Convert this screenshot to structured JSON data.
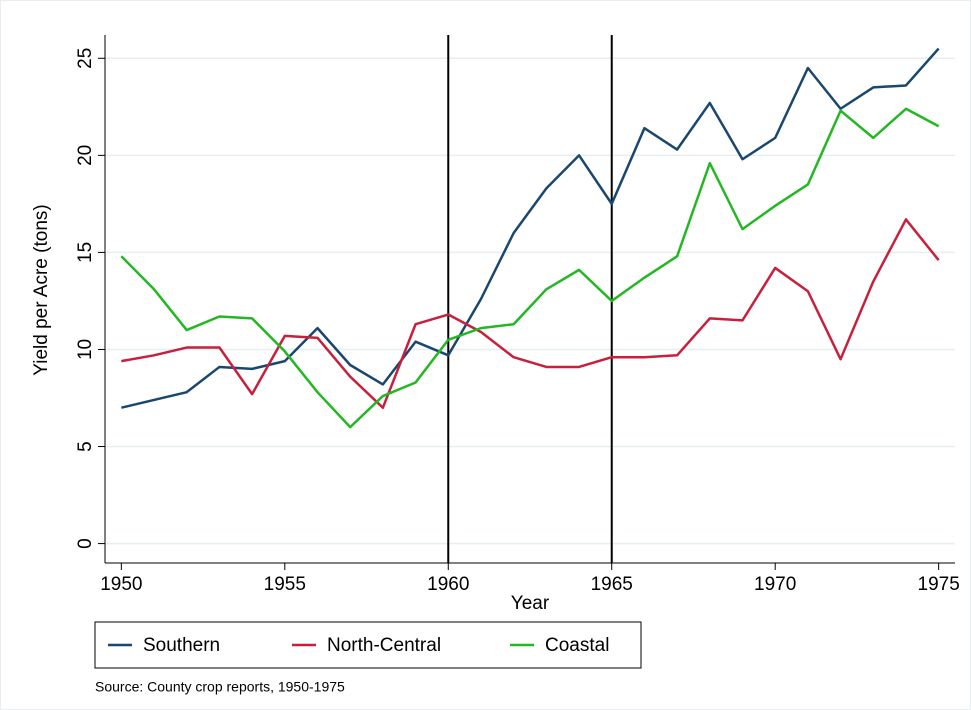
{
  "chart_data": {
    "type": "line",
    "x_label": "Year",
    "y_label": "Yield per Acre (tons)",
    "note": "Source: County crop reports, 1950-1975",
    "x": [
      1950,
      1951,
      1952,
      1953,
      1954,
      1955,
      1956,
      1957,
      1958,
      1959,
      1960,
      1961,
      1962,
      1963,
      1964,
      1965,
      1966,
      1967,
      1968,
      1969,
      1970,
      1971,
      1972,
      1973,
      1974,
      1975
    ],
    "series": [
      {
        "name": "Southern",
        "color": "#1a476f",
        "values": [
          7.0,
          7.4,
          7.8,
          9.1,
          9.0,
          9.4,
          11.1,
          9.2,
          8.2,
          10.4,
          9.7,
          12.6,
          16.0,
          18.3,
          20.0,
          17.5,
          21.4,
          20.3,
          22.7,
          19.8,
          20.9,
          24.5,
          22.4,
          23.5,
          23.6,
          25.5
        ]
      },
      {
        "name": "North-Central",
        "color": "#c8203c",
        "values": [
          9.4,
          9.7,
          10.1,
          10.1,
          7.7,
          10.7,
          10.6,
          8.6,
          7.0,
          11.3,
          11.8,
          10.9,
          9.6,
          9.1,
          9.1,
          9.6,
          9.6,
          9.7,
          11.6,
          11.5,
          14.2,
          13.0,
          9.5,
          13.5,
          16.7,
          14.6
        ]
      },
      {
        "name": "Coastal",
        "color": "#23b823",
        "values": [
          14.8,
          13.1,
          11.0,
          11.7,
          11.6,
          9.9,
          7.8,
          6.0,
          7.6,
          8.3,
          10.5,
          11.1,
          11.3,
          13.1,
          14.1,
          12.5,
          13.7,
          14.8,
          19.6,
          16.2,
          17.4,
          18.5,
          22.3,
          20.9,
          22.4,
          21.5
        ]
      }
    ],
    "vlines": [
      1960,
      1965
    ],
    "xlim": [
      1949.5,
      1975.5
    ],
    "xticks": [
      1950,
      1955,
      1960,
      1965,
      1970,
      1975
    ],
    "ylim": [
      -1,
      26.2
    ],
    "yticks": [
      0,
      5,
      10,
      15,
      20,
      25
    ],
    "grid": true,
    "legend": "bottom"
  }
}
